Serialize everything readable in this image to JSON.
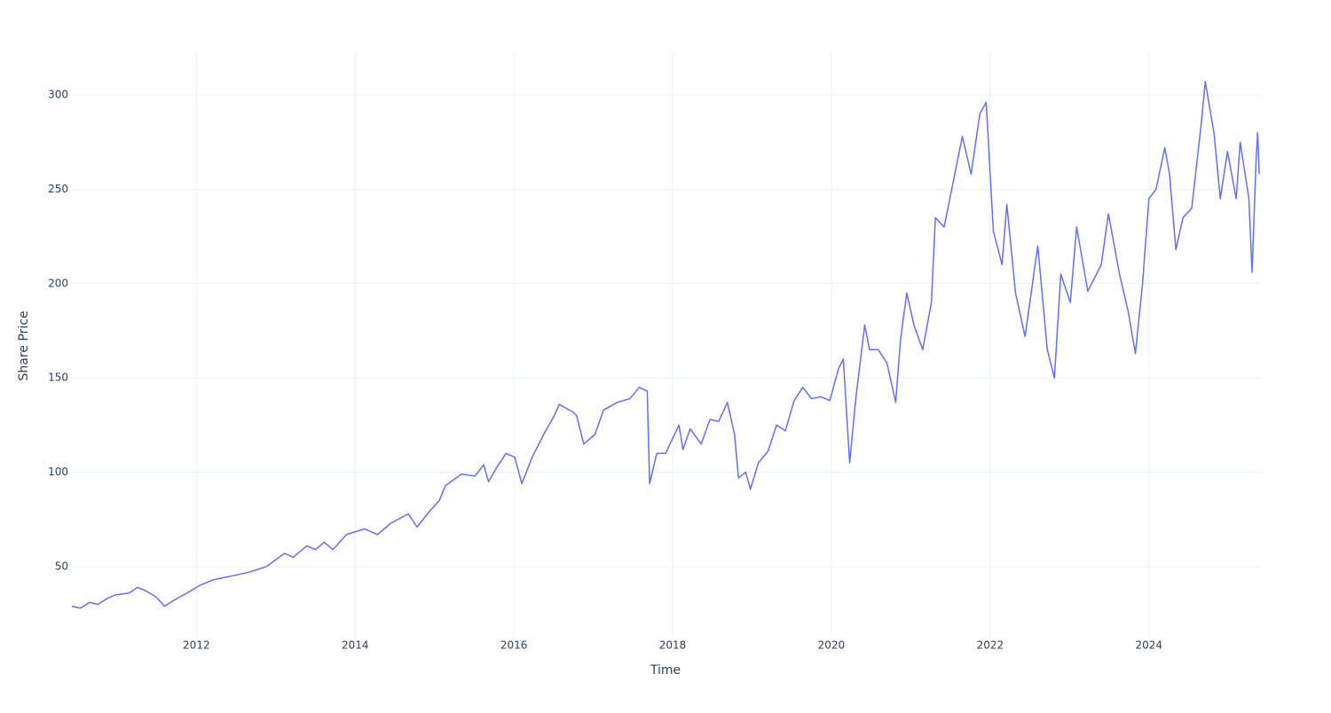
{
  "chart_data": {
    "type": "line",
    "x_label": "Time",
    "y_label": "Share Price",
    "xlim": [
      2010.42,
      2025.4
    ],
    "xticks": [
      2012,
      2014,
      2016,
      2018,
      2020,
      2022,
      2024
    ],
    "ylim": [
      11.9,
      322.1
    ],
    "yticks": [
      50,
      100,
      150,
      200,
      250,
      300
    ],
    "grid": true,
    "series": [
      {
        "color": "#636efa",
        "x": [
          2010.43,
          2010.54,
          2010.65,
          2010.76,
          2010.87,
          2010.98,
          2011.15,
          2011.26,
          2011.37,
          2011.49,
          2011.6,
          2011.71,
          2011.88,
          2012.04,
          2012.21,
          2012.44,
          2012.66,
          2012.88,
          2013.11,
          2013.22,
          2013.39,
          2013.5,
          2013.61,
          2013.72,
          2013.89,
          2014.12,
          2014.28,
          2014.45,
          2014.67,
          2014.78,
          2014.95,
          2015.06,
          2015.14,
          2015.34,
          2015.51,
          2015.62,
          2015.68,
          2015.79,
          2015.9,
          2016.01,
          2016.1,
          2016.23,
          2016.4,
          2016.51,
          2016.57,
          2016.74,
          2016.79,
          2016.88,
          2017.02,
          2017.13,
          2017.3,
          2017.46,
          2017.58,
          2017.68,
          2017.71,
          2017.8,
          2017.91,
          2018.08,
          2018.13,
          2018.22,
          2018.36,
          2018.47,
          2018.58,
          2018.69,
          2018.78,
          2018.83,
          2018.92,
          2018.98,
          2019.08,
          2019.2,
          2019.31,
          2019.42,
          2019.53,
          2019.64,
          2019.75,
          2019.87,
          2019.98,
          2020.09,
          2020.15,
          2020.23,
          2020.31,
          2020.42,
          2020.48,
          2020.59,
          2020.7,
          2020.81,
          2020.87,
          2020.95,
          2021.04,
          2021.15,
          2021.26,
          2021.31,
          2021.42,
          2021.54,
          2021.65,
          2021.76,
          2021.87,
          2021.95,
          2022.04,
          2022.15,
          2022.21,
          2022.32,
          2022.44,
          2022.6,
          2022.72,
          2022.81,
          2022.89,
          2023.01,
          2023.09,
          2023.23,
          2023.4,
          2023.49,
          2023.63,
          2023.74,
          2023.83,
          2023.92,
          2024.0,
          2024.09,
          2024.2,
          2024.26,
          2024.34,
          2024.43,
          2024.54,
          2024.66,
          2024.71,
          2024.82,
          2024.9,
          2024.99,
          2025.1,
          2025.15,
          2025.26,
          2025.3,
          2025.35,
          2025.37,
          2025.39
        ],
        "values": [
          29,
          28,
          31,
          30,
          33,
          35,
          36,
          39,
          37,
          34,
          29,
          32,
          36,
          40,
          43,
          45,
          47,
          50,
          57,
          55,
          61,
          59,
          63,
          59,
          67,
          70,
          67,
          73,
          78,
          71,
          80,
          85,
          93,
          99,
          98,
          104,
          95,
          103,
          110,
          108,
          94,
          108,
          122,
          130,
          136,
          132,
          130,
          115,
          120,
          133,
          137,
          139,
          145,
          143,
          94,
          110,
          110,
          125,
          112,
          123,
          115,
          128,
          127,
          137,
          120,
          97,
          100,
          91,
          105,
          111,
          125,
          122,
          138,
          145,
          139,
          140,
          138,
          155,
          160,
          105,
          140,
          178,
          165,
          165,
          158,
          137,
          170,
          195,
          178,
          165,
          190,
          235,
          230,
          255,
          278,
          258,
          290,
          296,
          228,
          210,
          242,
          195,
          172,
          220,
          165,
          150,
          205,
          190,
          230,
          196,
          210,
          237,
          205,
          185,
          163,
          200,
          245,
          250,
          272,
          258,
          218,
          235,
          240,
          285,
          307,
          280,
          245,
          270,
          245,
          275,
          245,
          206,
          265,
          280,
          258
        ]
      }
    ]
  }
}
